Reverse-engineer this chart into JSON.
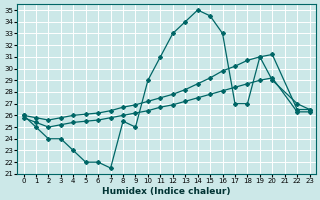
{
  "title": "",
  "xlabel": "Humidex (Indice chaleur)",
  "ylabel": "",
  "background_color": "#cce8e8",
  "line_color": "#006666",
  "grid_color": "#ffffff",
  "xlim": [
    -0.5,
    23.5
  ],
  "ylim": [
    21,
    35.5
  ],
  "yticks": [
    21,
    22,
    23,
    24,
    25,
    26,
    27,
    28,
    29,
    30,
    31,
    32,
    33,
    34,
    35
  ],
  "xticks": [
    0,
    1,
    2,
    3,
    4,
    5,
    6,
    7,
    8,
    9,
    10,
    11,
    12,
    13,
    14,
    15,
    16,
    17,
    18,
    19,
    20,
    21,
    22,
    23
  ],
  "series": [
    {
      "x": [
        0,
        1,
        2,
        3,
        4,
        5,
        6,
        7,
        8,
        9,
        10,
        11,
        12,
        13,
        14,
        15,
        16,
        17,
        18,
        19,
        20,
        22,
        23
      ],
      "y": [
        26,
        25,
        24,
        24,
        23,
        22,
        22,
        21.5,
        25.5,
        25,
        29,
        31,
        33,
        34,
        35,
        34.5,
        33,
        27,
        27,
        31,
        29,
        27,
        26.5
      ]
    },
    {
      "x": [
        0,
        1,
        2,
        3,
        4,
        5,
        6,
        7,
        8,
        9,
        10,
        11,
        12,
        13,
        14,
        15,
        16,
        17,
        18,
        19,
        20,
        22,
        23
      ],
      "y": [
        26,
        25.8,
        25.6,
        25.8,
        26,
        26.1,
        26.2,
        26.4,
        26.7,
        26.9,
        27.2,
        27.5,
        27.8,
        28.2,
        28.7,
        29.2,
        29.8,
        30.2,
        30.7,
        31.0,
        31.2,
        26.5,
        26.5
      ]
    },
    {
      "x": [
        0,
        1,
        2,
        3,
        4,
        5,
        6,
        7,
        8,
        9,
        10,
        11,
        12,
        13,
        14,
        15,
        16,
        17,
        18,
        19,
        20,
        22,
        23
      ],
      "y": [
        25.8,
        25.4,
        25.0,
        25.2,
        25.4,
        25.5,
        25.6,
        25.8,
        26.0,
        26.2,
        26.4,
        26.7,
        26.9,
        27.2,
        27.5,
        27.8,
        28.1,
        28.4,
        28.7,
        29.0,
        29.2,
        26.3,
        26.3
      ]
    }
  ]
}
